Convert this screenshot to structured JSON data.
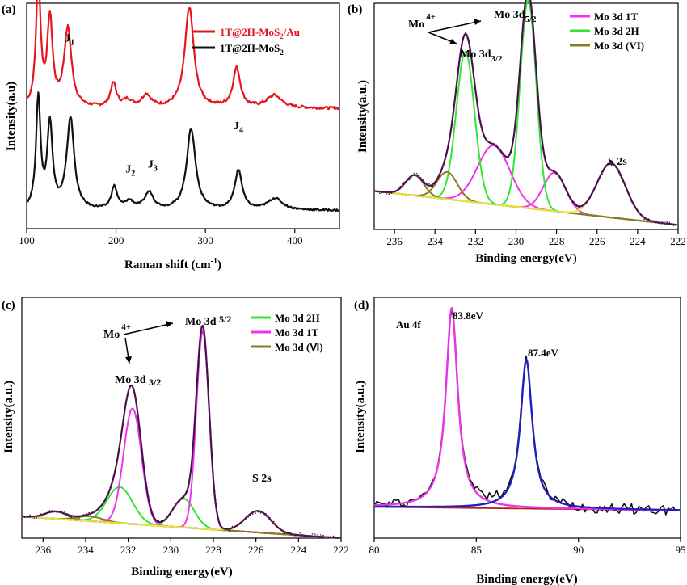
{
  "chart_data": [
    {
      "panel": "(a)",
      "type": "line",
      "xlabel": "Raman shift (cm",
      "xlabel_sup": "-1",
      "xlabel_end": ")",
      "ylabel": "Intensity(a.u)",
      "xlim": [
        100,
        450
      ],
      "xticks": [
        100,
        200,
        300,
        400
      ],
      "ylim": [
        0,
        1
      ],
      "series": [
        {
          "name": "1T@2H-MoS",
          "name_sub": "2",
          "name_end": "/Au",
          "color": "#e8141e",
          "offset": 0.53,
          "scale": 0.62,
          "noise": 0.003,
          "base": 0.003,
          "peaks": [
            [
              113,
              3,
              0.92
            ],
            [
              126,
              3.5,
              0.62
            ],
            [
              146,
              5,
              0.56
            ],
            [
              197,
              4,
              0.17
            ],
            [
              213,
              6,
              0.05
            ],
            [
              234,
              6,
              0.09
            ],
            [
              282,
              6,
              0.72
            ],
            [
              335,
              5,
              0.28
            ],
            [
              377,
              10,
              0.09
            ]
          ]
        },
        {
          "name": "1T@2H-MoS",
          "name_sub": "2",
          "name_end": "",
          "color": "#111111",
          "offset": 0.08,
          "scale": 0.58,
          "noise": 0.002,
          "base": 0.0,
          "peaks": [
            [
              113,
              3,
              0.85
            ],
            [
              126,
              3.5,
              0.65
            ],
            [
              149,
              5,
              0.7
            ],
            [
              198,
              4,
              0.17
            ],
            [
              215,
              6,
              0.06
            ],
            [
              237,
              6,
              0.13
            ],
            [
              284,
              6,
              0.62
            ],
            [
              337,
              5,
              0.3
            ],
            [
              378,
              10,
              0.09
            ]
          ]
        }
      ],
      "annotations": [
        {
          "text": "J",
          "sub": "1",
          "x": 148,
          "y": 0.83
        },
        {
          "text": "J",
          "sub": "2",
          "x": 216,
          "y": 0.25
        },
        {
          "text": "J",
          "sub": "3",
          "x": 241,
          "y": 0.27
        },
        {
          "text": "J",
          "sub": "4",
          "x": 337,
          "y": 0.44
        }
      ]
    },
    {
      "panel": "(b)",
      "type": "line",
      "xlabel": "Binding energy(eV)",
      "ylabel": "Intensity(a.u.)",
      "xlim": [
        237,
        222
      ],
      "xticks": [
        236,
        234,
        232,
        230,
        228,
        226,
        224,
        222
      ],
      "ylim": [
        0,
        1
      ],
      "baseline": {
        "from": [
          237,
          0.17
        ],
        "to": [
          222,
          0.02
        ]
      },
      "components": [
        {
          "name": "Mo 3d 1T",
          "color": "#ee33ee",
          "peaks": [
            [
              231.1,
              0.8,
              0.26
            ],
            [
              228.1,
              0.55,
              0.17
            ]
          ]
        },
        {
          "name": "Mo 3d 2H",
          "color": "#33e633",
          "peaks": [
            [
              232.5,
              0.45,
              0.66
            ],
            [
              229.4,
              0.4,
              0.92
            ]
          ]
        },
        {
          "name": "Mo 3d (VI)",
          "color": "#8b7a20",
          "peaks": [
            [
              235.0,
              0.45,
              0.09
            ],
            [
              233.4,
              0.5,
              0.12
            ]
          ]
        },
        {
          "name": "",
          "color": "#e8e83a",
          "legend": false,
          "peaks": [
            [
              225.3,
              0.7,
              0.24
            ]
          ]
        }
      ],
      "envelope_color": "#5a1060",
      "annotations": [
        {
          "text": "Mo",
          "sup": "4+"
        },
        {
          "text": "Mo 3d",
          "sub": "5/2"
        },
        {
          "text": "Mo 3d",
          "sub": "3/2"
        },
        {
          "text": "S 2s"
        }
      ]
    },
    {
      "panel": "(c)",
      "type": "line",
      "xlabel": "Binding energy(eV)",
      "ylabel": "Intensity(a.u.)",
      "xlim": [
        237,
        222
      ],
      "xticks": [
        236,
        234,
        232,
        230,
        228,
        226,
        224,
        222
      ],
      "ylim": [
        0,
        1
      ],
      "baseline": {
        "from": [
          237,
          0.09
        ],
        "to": [
          222,
          0.0
        ]
      },
      "components": [
        {
          "name": "Mo 3d 2H",
          "color": "#33e633",
          "peaks": [
            [
              232.4,
              0.6,
              0.15
            ],
            [
              229.4,
              0.5,
              0.12
            ]
          ]
        },
        {
          "name": "Mo 3d 1T",
          "color": "#ee33ee",
          "peaks": [
            [
              231.8,
              0.42,
              0.48
            ],
            [
              228.5,
              0.3,
              0.82
            ]
          ]
        },
        {
          "name": "Mo 3d (Ⅵ)",
          "color": "#8b7a20",
          "peaks": [
            [
              235.4,
              0.5,
              0.03
            ],
            [
              233.8,
              0.6,
              0.02
            ]
          ]
        },
        {
          "name": "",
          "color": "#e8e83a",
          "legend": false,
          "peaks": [
            [
              225.9,
              0.6,
              0.09
            ]
          ]
        }
      ],
      "envelope_color": "#5a1060",
      "annotations": [
        {
          "text": "Mo",
          "sup": "4+"
        },
        {
          "text": "Mo 3d ",
          "sub": "5/2"
        },
        {
          "text": "Mo 3d ",
          "sub": "3/2"
        },
        {
          "text": "S 2s"
        }
      ]
    },
    {
      "panel": "(d)",
      "type": "line",
      "xlabel": "Binding energy(eV)",
      "ylabel": "Intensity(a.u.)",
      "xlim": [
        80,
        95
      ],
      "xticks": [
        80,
        85,
        90,
        95
      ],
      "ylim": [
        0,
        1
      ],
      "title": "Au 4f",
      "components": [
        {
          "name": "",
          "color": "#ee33ee",
          "peaks": [
            [
              83.8,
              0.35,
              0.83
            ]
          ]
        },
        {
          "name": "",
          "color": "#2020c8",
          "peaks": [
            [
              87.45,
              0.35,
              0.62
            ]
          ]
        },
        {
          "name": "",
          "color": "#b01e1e",
          "peaks": []
        }
      ],
      "annotations": [
        {
          "text": "83.8eV",
          "x": 83.8
        },
        {
          "text": "87.4eV",
          "x": 87.4
        }
      ]
    }
  ]
}
